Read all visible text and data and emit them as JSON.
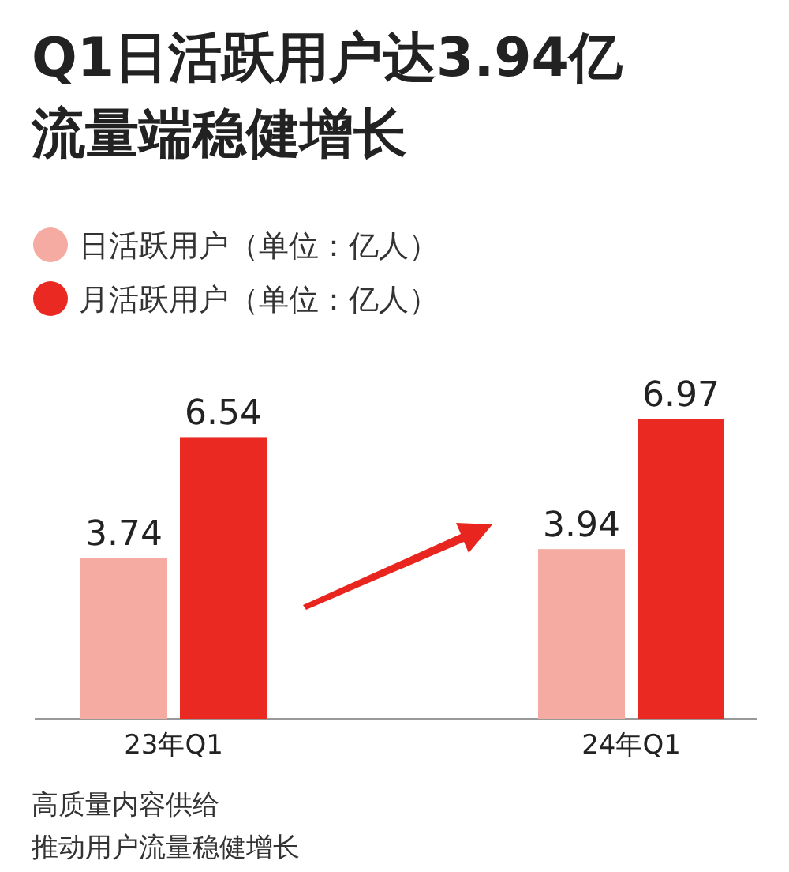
{
  "chart_data": {
    "type": "bar",
    "title": "Q1日活跃用户达3.94亿",
    "subtitle": "流量端稳健增长",
    "categories": [
      "23年Q1",
      "24年Q1"
    ],
    "series": [
      {
        "name": "日活跃用户（单位：亿人）",
        "color": "#f5aaa2",
        "values": [
          3.74,
          3.94
        ]
      },
      {
        "name": "月活跃用户（单位：亿人）",
        "color": "#ea2a22",
        "values": [
          6.54,
          6.97
        ]
      }
    ],
    "data_labels": true,
    "legend": "top left",
    "annotations": [
      "高质量内容供给",
      "推动用户流量稳健增长"
    ]
  }
}
